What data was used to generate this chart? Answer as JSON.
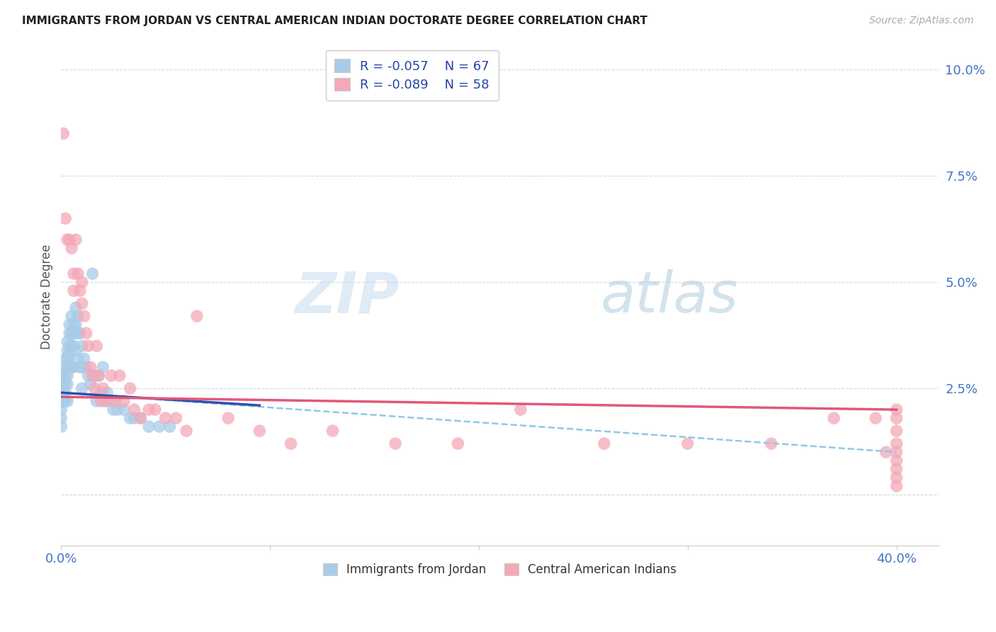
{
  "title": "IMMIGRANTS FROM JORDAN VS CENTRAL AMERICAN INDIAN DOCTORATE DEGREE CORRELATION CHART",
  "source": "Source: ZipAtlas.com",
  "ylabel": "Doctorate Degree",
  "xlim": [
    0.0,
    0.42
  ],
  "ylim": [
    -0.012,
    0.105
  ],
  "yticks": [
    0.0,
    0.025,
    0.05,
    0.075,
    0.1
  ],
  "ytick_labels": [
    "",
    "2.5%",
    "5.0%",
    "7.5%",
    "10.0%"
  ],
  "xtick_positions": [
    0.0,
    0.1,
    0.2,
    0.3,
    0.4
  ],
  "xtick_labels": [
    "0.0%",
    "",
    "",
    "",
    "40.0%"
  ],
  "blue_color": "#A8CCE8",
  "pink_color": "#F4A8B8",
  "blue_line_color": "#3050B0",
  "pink_line_color": "#E05878",
  "dashed_line_color": "#90C8E8",
  "legend_label1": "Immigrants from Jordan",
  "legend_label2": "Central American Indians",
  "jordan_x": [
    0.0,
    0.0,
    0.0,
    0.001,
    0.001,
    0.001,
    0.001,
    0.002,
    0.002,
    0.002,
    0.002,
    0.002,
    0.002,
    0.003,
    0.003,
    0.003,
    0.003,
    0.003,
    0.003,
    0.003,
    0.004,
    0.004,
    0.004,
    0.004,
    0.004,
    0.005,
    0.005,
    0.005,
    0.005,
    0.006,
    0.006,
    0.006,
    0.006,
    0.007,
    0.007,
    0.007,
    0.007,
    0.008,
    0.008,
    0.008,
    0.009,
    0.009,
    0.01,
    0.01,
    0.01,
    0.011,
    0.012,
    0.013,
    0.014,
    0.015,
    0.016,
    0.017,
    0.018,
    0.019,
    0.02,
    0.021,
    0.022,
    0.024,
    0.025,
    0.027,
    0.03,
    0.033,
    0.035,
    0.038,
    0.042,
    0.047,
    0.052
  ],
  "jordan_y": [
    0.02,
    0.018,
    0.016,
    0.028,
    0.026,
    0.024,
    0.022,
    0.032,
    0.03,
    0.028,
    0.026,
    0.024,
    0.022,
    0.036,
    0.034,
    0.032,
    0.03,
    0.028,
    0.026,
    0.022,
    0.04,
    0.038,
    0.035,
    0.033,
    0.03,
    0.042,
    0.038,
    0.035,
    0.03,
    0.04,
    0.038,
    0.035,
    0.03,
    0.044,
    0.04,
    0.038,
    0.034,
    0.042,
    0.038,
    0.032,
    0.038,
    0.03,
    0.035,
    0.03,
    0.025,
    0.032,
    0.03,
    0.028,
    0.026,
    0.052,
    0.028,
    0.022,
    0.028,
    0.024,
    0.03,
    0.022,
    0.024,
    0.022,
    0.02,
    0.02,
    0.02,
    0.018,
    0.018,
    0.018,
    0.016,
    0.016,
    0.016
  ],
  "central_x": [
    0.001,
    0.002,
    0.003,
    0.004,
    0.005,
    0.006,
    0.006,
    0.007,
    0.008,
    0.009,
    0.01,
    0.01,
    0.011,
    0.012,
    0.013,
    0.014,
    0.015,
    0.016,
    0.017,
    0.018,
    0.019,
    0.02,
    0.022,
    0.024,
    0.026,
    0.028,
    0.03,
    0.033,
    0.035,
    0.038,
    0.042,
    0.045,
    0.05,
    0.055,
    0.06,
    0.065,
    0.08,
    0.095,
    0.11,
    0.13,
    0.16,
    0.19,
    0.22,
    0.26,
    0.3,
    0.34,
    0.37,
    0.39,
    0.395,
    0.4,
    0.4,
    0.4,
    0.4,
    0.4,
    0.4,
    0.4,
    0.4,
    0.4
  ],
  "central_y": [
    0.085,
    0.065,
    0.06,
    0.06,
    0.058,
    0.052,
    0.048,
    0.06,
    0.052,
    0.048,
    0.05,
    0.045,
    0.042,
    0.038,
    0.035,
    0.03,
    0.028,
    0.025,
    0.035,
    0.028,
    0.022,
    0.025,
    0.022,
    0.028,
    0.022,
    0.028,
    0.022,
    0.025,
    0.02,
    0.018,
    0.02,
    0.02,
    0.018,
    0.018,
    0.015,
    0.042,
    0.018,
    0.015,
    0.012,
    0.015,
    0.012,
    0.012,
    0.02,
    0.012,
    0.012,
    0.012,
    0.018,
    0.018,
    0.01,
    0.02,
    0.018,
    0.015,
    0.012,
    0.01,
    0.008,
    0.006,
    0.004,
    0.002
  ],
  "blue_trend_x": [
    0.0,
    0.095
  ],
  "blue_trend_y": [
    0.024,
    0.021
  ],
  "pink_trend_x": [
    0.0,
    0.4
  ],
  "pink_trend_y": [
    0.023,
    0.02
  ],
  "dash_trend_x": [
    0.0,
    0.4
  ],
  "dash_trend_y": [
    0.024,
    0.01
  ]
}
